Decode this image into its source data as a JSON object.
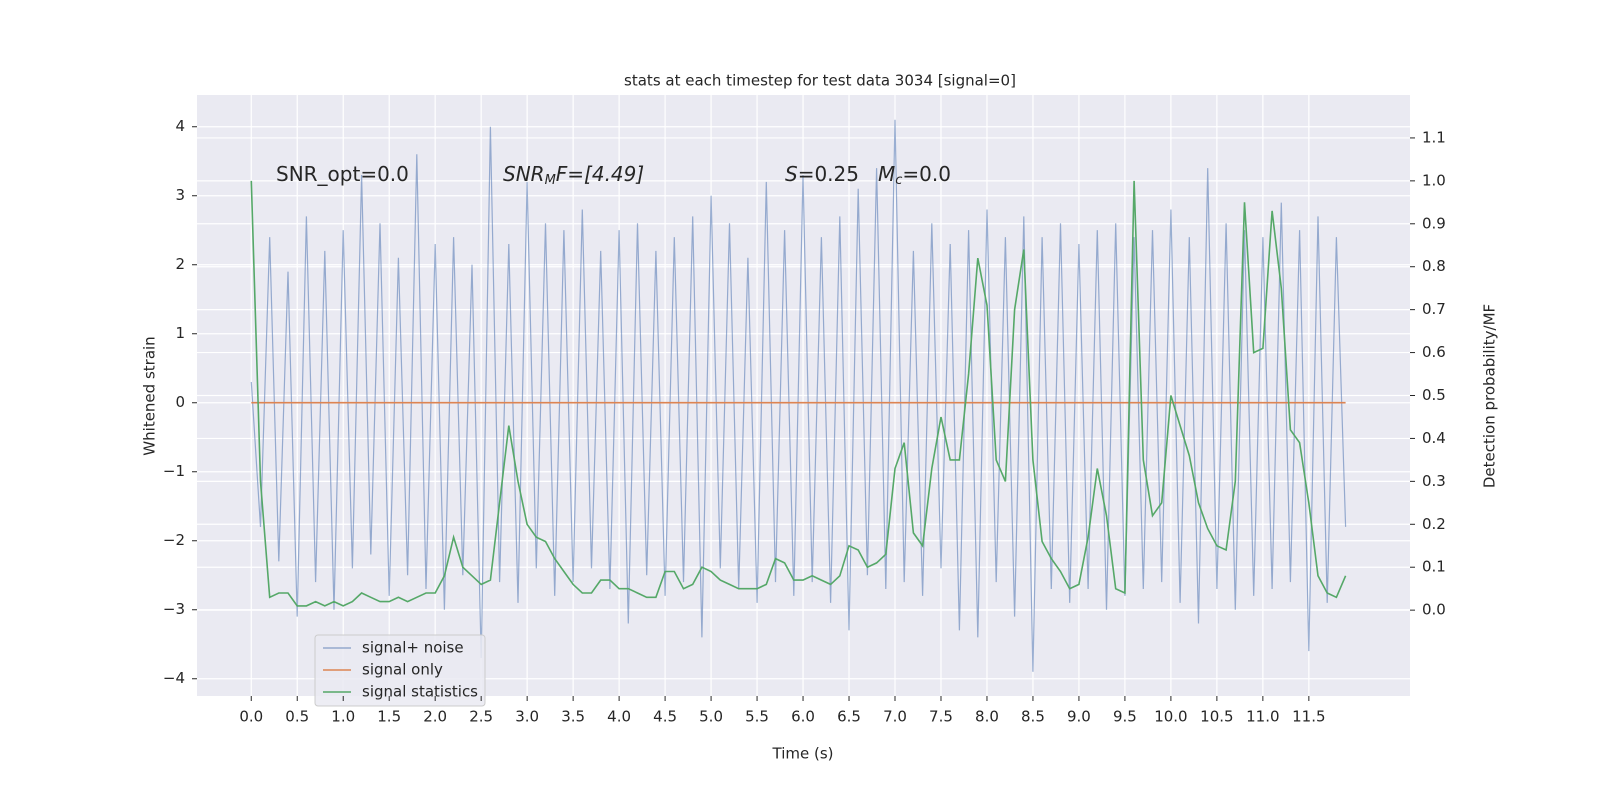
{
  "chart_data": {
    "type": "line",
    "title": "stats at each timestep for test data 3034 [signal=0]",
    "xlabel": "Time (s)",
    "ylabel": "Whitened strain",
    "y2label": "Detection probability/MF",
    "annotations": [
      [
        "SNR_opt=0.0"
      ],
      [
        "SNR",
        "M",
        "F=[4.49]"
      ],
      [
        "S",
        "=0.25"
      ],
      [
        "M",
        "c",
        "=0.0"
      ]
    ],
    "xlim": [
      -0.59,
      12.6
    ],
    "ylim": [
      -4.25,
      4.46
    ],
    "y2lim": [
      -0.2,
      1.2
    ],
    "grid": true,
    "legend": "lower left",
    "xticks": [
      {
        "value": 0,
        "label": "0.0"
      },
      {
        "value": 0.5,
        "label": "0.5"
      },
      {
        "value": 1,
        "label": "1.0"
      },
      {
        "value": 1.5,
        "label": "1.5"
      },
      {
        "value": 2,
        "label": "2.0"
      },
      {
        "value": 2.5,
        "label": "2.5"
      },
      {
        "value": 3,
        "label": "3.0"
      },
      {
        "value": 3.5,
        "label": "3.5"
      },
      {
        "value": 4,
        "label": "4.0"
      },
      {
        "value": 4.5,
        "label": "4.5"
      },
      {
        "value": 5,
        "label": "5.0"
      },
      {
        "value": 5.5,
        "label": "5.5"
      },
      {
        "value": 6,
        "label": "6.0"
      },
      {
        "value": 6.5,
        "label": "6.5"
      },
      {
        "value": 7,
        "label": "7.0"
      },
      {
        "value": 7.5,
        "label": "7.5"
      },
      {
        "value": 8,
        "label": "8.0"
      },
      {
        "value": 8.5,
        "label": "8.5"
      },
      {
        "value": 9,
        "label": "9.0"
      },
      {
        "value": 9.5,
        "label": "9.5"
      },
      {
        "value": 10,
        "label": "10.0"
      },
      {
        "value": 10.5,
        "label": "10.5"
      },
      {
        "value": 11,
        "label": "11.0"
      },
      {
        "value": 11.5,
        "label": "11.5"
      }
    ],
    "yticks": [
      {
        "value": -4,
        "label": "−4"
      },
      {
        "value": -3,
        "label": "−3"
      },
      {
        "value": -2,
        "label": "−2"
      },
      {
        "value": -1,
        "label": "−1"
      },
      0,
      1,
      2,
      3,
      4
    ],
    "y2ticks": [
      {
        "value": 0,
        "label": "0.0"
      },
      {
        "value": 0.1,
        "label": "0.1"
      },
      {
        "value": 0.2,
        "label": "0.2"
      },
      {
        "value": 0.3,
        "label": "0.3"
      },
      {
        "value": 0.4,
        "label": "0.4"
      },
      {
        "value": 0.5,
        "label": "0.5"
      },
      {
        "value": 0.6,
        "label": "0.6"
      },
      {
        "value": 0.7,
        "label": "0.7"
      },
      {
        "value": 0.8,
        "label": "0.8"
      },
      {
        "value": 0.9,
        "label": "0.9"
      },
      {
        "value": 1,
        "label": "1.0"
      },
      {
        "value": 1.1,
        "label": "1.1"
      }
    ],
    "x": [
      0,
      0.1,
      0.2,
      0.3,
      0.4,
      0.5,
      0.6,
      0.7,
      0.8,
      0.9,
      1,
      1.1,
      1.2,
      1.3,
      1.4,
      1.5,
      1.6,
      1.7,
      1.8,
      1.9,
      2,
      2.1,
      2.2,
      2.3,
      2.4,
      2.5,
      2.6,
      2.7,
      2.8,
      2.9,
      3,
      3.1,
      3.2,
      3.3,
      3.4,
      3.5,
      3.6,
      3.7,
      3.8,
      3.9,
      4,
      4.1,
      4.2,
      4.3,
      4.4,
      4.5,
      4.6,
      4.7,
      4.8,
      4.9,
      5,
      5.1,
      5.2,
      5.3,
      5.4,
      5.5,
      5.6,
      5.7,
      5.8,
      5.9,
      6,
      6.1,
      6.2,
      6.3,
      6.4,
      6.5,
      6.6,
      6.7,
      6.8,
      6.9,
      7,
      7.1,
      7.2,
      7.3,
      7.4,
      7.5,
      7.6,
      7.7,
      7.8,
      7.9,
      8,
      8.1,
      8.2,
      8.3,
      8.4,
      8.5,
      8.6,
      8.7,
      8.8,
      8.9,
      9,
      9.1,
      9.2,
      9.3,
      9.4,
      9.5,
      9.6,
      9.7,
      9.8,
      9.9,
      10,
      10.1,
      10.2,
      10.3,
      10.4,
      10.5,
      10.6,
      10.7,
      10.8,
      10.9,
      11,
      11.1,
      11.2,
      11.3,
      11.4,
      11.5,
      11.6,
      11.7,
      11.8,
      11.9
    ],
    "series": [
      {
        "name": "signal+ noise",
        "color": "#4c72b0",
        "values": [
          0.3,
          -1.8,
          2.4,
          -2.3,
          1.9,
          -3.1,
          2.7,
          -2.6,
          2.2,
          -3.0,
          2.5,
          -2.4,
          3.3,
          -2.2,
          2.6,
          -2.8,
          2.1,
          -2.5,
          3.6,
          -2.7,
          2.3,
          -3.0,
          2.4,
          -2.5,
          2.0,
          -3.7,
          4.0,
          -2.6,
          2.3,
          -2.9,
          3.2,
          -2.4,
          2.6,
          -2.8,
          2.5,
          -2.6,
          2.8,
          -2.4,
          2.2,
          -2.7,
          2.5,
          -3.2,
          2.6,
          -2.5,
          2.2,
          -2.8,
          2.4,
          -2.6,
          2.7,
          -3.4,
          3.0,
          -2.4,
          2.6,
          -2.7,
          2.1,
          -2.9,
          3.2,
          -2.6,
          2.5,
          -2.8,
          3.3,
          -2.6,
          2.4,
          -2.9,
          2.7,
          -3.3,
          3.1,
          -2.5,
          3.4,
          -2.7,
          4.1,
          -2.6,
          2.2,
          -2.8,
          2.6,
          -2.4,
          2.3,
          -3.3,
          2.5,
          -3.4,
          2.8,
          -2.6,
          2.4,
          -3.1,
          2.7,
          -3.9,
          2.4,
          -2.7,
          2.6,
          -2.9,
          2.3,
          -2.7,
          2.5,
          -3.0,
          2.6,
          -2.8,
          2.4,
          -2.7,
          2.5,
          -2.6,
          2.8,
          -2.9,
          2.4,
          -3.2,
          3.4,
          -2.7,
          2.6,
          -3.0,
          2.5,
          -2.8,
          2.4,
          -2.7,
          2.9,
          -2.6,
          2.5,
          -3.6,
          2.7,
          -2.9,
          2.4,
          -1.8
        ]
      },
      {
        "name": "signal only",
        "color": "#dd8452",
        "values": [
          0,
          0,
          0,
          0,
          0,
          0,
          0,
          0,
          0,
          0,
          0,
          0,
          0,
          0,
          0,
          0,
          0,
          0,
          0,
          0,
          0,
          0,
          0,
          0,
          0,
          0,
          0,
          0,
          0,
          0,
          0,
          0,
          0,
          0,
          0,
          0,
          0,
          0,
          0,
          0,
          0,
          0,
          0,
          0,
          0,
          0,
          0,
          0,
          0,
          0,
          0,
          0,
          0,
          0,
          0,
          0,
          0,
          0,
          0,
          0,
          0,
          0,
          0,
          0,
          0,
          0,
          0,
          0,
          0,
          0,
          0,
          0,
          0,
          0,
          0,
          0,
          0,
          0,
          0,
          0,
          0,
          0,
          0,
          0,
          0,
          0,
          0,
          0,
          0,
          0,
          0,
          0,
          0,
          0,
          0,
          0,
          0,
          0,
          0,
          0,
          0,
          0,
          0,
          0,
          0,
          0,
          0,
          0,
          0,
          0,
          0,
          0,
          0,
          0,
          0,
          0,
          0,
          0,
          0,
          0
        ]
      },
      {
        "name": "signal statistics",
        "color": "#55a868",
        "axis": "y2",
        "values": [
          1.0,
          0.3,
          0.03,
          0.04,
          0.04,
          0.01,
          0.01,
          0.02,
          0.01,
          0.02,
          0.01,
          0.02,
          0.04,
          0.03,
          0.02,
          0.02,
          0.03,
          0.02,
          0.03,
          0.04,
          0.04,
          0.08,
          0.17,
          0.1,
          0.08,
          0.06,
          0.07,
          0.25,
          0.43,
          0.3,
          0.2,
          0.17,
          0.16,
          0.12,
          0.09,
          0.06,
          0.04,
          0.04,
          0.07,
          0.07,
          0.05,
          0.05,
          0.04,
          0.03,
          0.03,
          0.09,
          0.09,
          0.05,
          0.06,
          0.1,
          0.09,
          0.07,
          0.06,
          0.05,
          0.05,
          0.05,
          0.06,
          0.12,
          0.11,
          0.07,
          0.07,
          0.08,
          0.07,
          0.06,
          0.08,
          0.15,
          0.14,
          0.1,
          0.11,
          0.13,
          0.33,
          0.39,
          0.18,
          0.15,
          0.33,
          0.45,
          0.35,
          0.35,
          0.55,
          0.82,
          0.71,
          0.35,
          0.3,
          0.7,
          0.84,
          0.35,
          0.16,
          0.12,
          0.09,
          0.05,
          0.06,
          0.17,
          0.33,
          0.22,
          0.05,
          0.04,
          1.0,
          0.35,
          0.22,
          0.25,
          0.5,
          0.43,
          0.36,
          0.25,
          0.19,
          0.15,
          0.14,
          0.3,
          0.95,
          0.6,
          0.61,
          0.93,
          0.75,
          0.42,
          0.39,
          0.25,
          0.08,
          0.04,
          0.03,
          0.08
        ]
      }
    ]
  }
}
